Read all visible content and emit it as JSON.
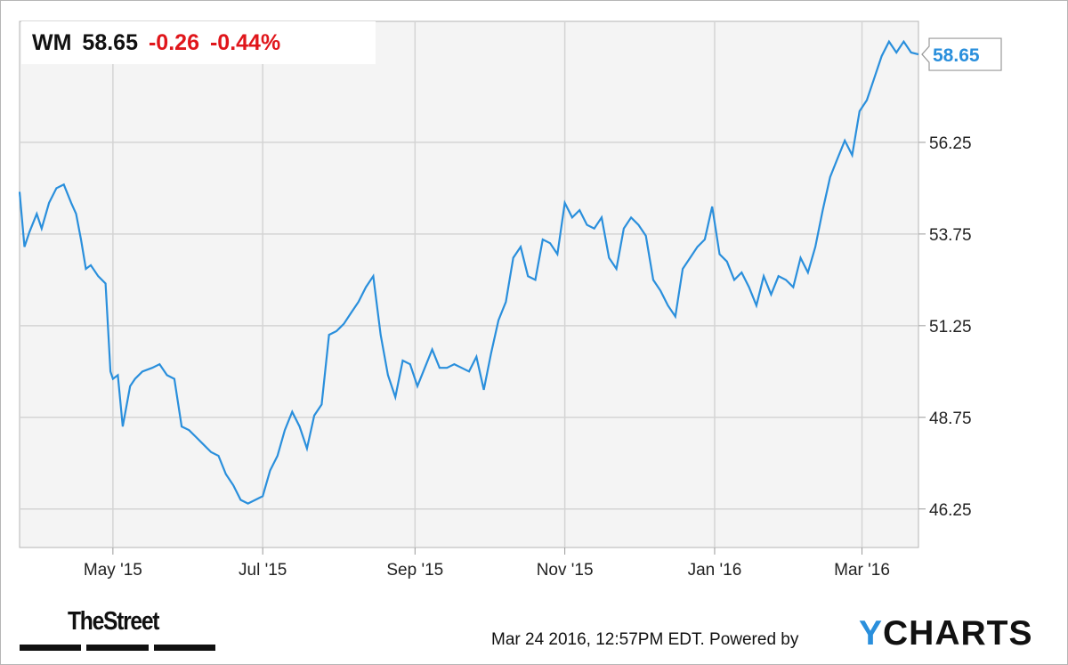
{
  "header": {
    "symbol": "WM",
    "price": "58.65",
    "change": "-0.26",
    "change_pct": "-0.44%"
  },
  "footer": {
    "timestamp": "Mar 24 2016, 12:57PM EDT.",
    "powered_by": "Powered by",
    "brand_y": "Y",
    "brand_rest": "CHARTS",
    "publisher_logo": "TheStreet"
  },
  "colors": {
    "line": "#2a8fdc",
    "negative": "#e0161b",
    "grid": "#d4d4d4",
    "plot_bg": "#f4f4f4"
  },
  "chart_data": {
    "type": "line",
    "title": "",
    "xlabel": "",
    "ylabel": "",
    "ylim": [
      45.2,
      59.55
    ],
    "y_ticks": [
      46.25,
      48.75,
      51.25,
      53.75,
      56.25
    ],
    "y_tick_labels": [
      "46.25",
      "48.75",
      "51.25",
      "53.75",
      "56.25"
    ],
    "x_ticks": [
      {
        "label": "May '15",
        "date": "2015-05-01"
      },
      {
        "label": "Jul '15",
        "date": "2015-07-01"
      },
      {
        "label": "Sep '15",
        "date": "2015-09-01"
      },
      {
        "label": "Nov '15",
        "date": "2015-11-01"
      },
      {
        "label": "Jan '16",
        "date": "2016-01-01"
      },
      {
        "label": "Mar '16",
        "date": "2016-03-01"
      }
    ],
    "x_range": [
      "2015-03-24",
      "2016-03-24"
    ],
    "last_value_label": "58.65",
    "series": [
      {
        "x": [
          "2015-03-24",
          "2015-03-26",
          "2015-03-28",
          "2015-03-31",
          "2015-04-02",
          "2015-04-05",
          "2015-04-08",
          "2015-04-11",
          "2015-04-14",
          "2015-04-16",
          "2015-04-18",
          "2015-04-20",
          "2015-04-22",
          "2015-04-25",
          "2015-04-28",
          "2015-04-30",
          "2015-05-01",
          "2015-05-03",
          "2015-05-05",
          "2015-05-08",
          "2015-05-10",
          "2015-05-13",
          "2015-05-17",
          "2015-05-20",
          "2015-05-23",
          "2015-05-26",
          "2015-05-29",
          "2015-06-01",
          "2015-06-04",
          "2015-06-07",
          "2015-06-10",
          "2015-06-13",
          "2015-06-16",
          "2015-06-19",
          "2015-06-22",
          "2015-06-25",
          "2015-06-28",
          "2015-07-01",
          "2015-07-04",
          "2015-07-07",
          "2015-07-10",
          "2015-07-13",
          "2015-07-16",
          "2015-07-19",
          "2015-07-22",
          "2015-07-25",
          "2015-07-28",
          "2015-07-31",
          "2015-08-03",
          "2015-08-06",
          "2015-08-09",
          "2015-08-12",
          "2015-08-15",
          "2015-08-18",
          "2015-08-21",
          "2015-08-24",
          "2015-08-27",
          "2015-08-30",
          "2015-09-02",
          "2015-09-05",
          "2015-09-08",
          "2015-09-11",
          "2015-09-14",
          "2015-09-17",
          "2015-09-20",
          "2015-09-23",
          "2015-09-26",
          "2015-09-29",
          "2015-10-02",
          "2015-10-05",
          "2015-10-08",
          "2015-10-11",
          "2015-10-14",
          "2015-10-17",
          "2015-10-20",
          "2015-10-23",
          "2015-10-26",
          "2015-10-29",
          "2015-11-01",
          "2015-11-04",
          "2015-11-07",
          "2015-11-10",
          "2015-11-13",
          "2015-11-16",
          "2015-11-19",
          "2015-11-22",
          "2015-11-25",
          "2015-11-28",
          "2015-12-01",
          "2015-12-04",
          "2015-12-07",
          "2015-12-10",
          "2015-12-13",
          "2015-12-16",
          "2015-12-19",
          "2015-12-22",
          "2015-12-25",
          "2015-12-28",
          "2015-12-31",
          "2016-01-03",
          "2016-01-06",
          "2016-01-09",
          "2016-01-12",
          "2016-01-15",
          "2016-01-18",
          "2016-01-21",
          "2016-01-24",
          "2016-01-27",
          "2016-01-30",
          "2016-02-02",
          "2016-02-05",
          "2016-02-08",
          "2016-02-11",
          "2016-02-14",
          "2016-02-17",
          "2016-02-20",
          "2016-02-23",
          "2016-02-26",
          "2016-02-29",
          "2016-03-03",
          "2016-03-06",
          "2016-03-09",
          "2016-03-12",
          "2016-03-15",
          "2016-03-18",
          "2016-03-21",
          "2016-03-24"
        ],
        "y": [
          54.9,
          53.4,
          53.8,
          54.3,
          53.9,
          54.6,
          55.0,
          55.1,
          54.6,
          54.3,
          53.6,
          52.8,
          52.9,
          52.6,
          52.4,
          50.0,
          49.8,
          49.9,
          48.5,
          49.6,
          49.8,
          50.0,
          50.1,
          50.2,
          49.9,
          49.8,
          48.5,
          48.4,
          48.2,
          48.0,
          47.8,
          47.7,
          47.2,
          46.9,
          46.5,
          46.4,
          46.5,
          46.6,
          47.3,
          47.7,
          48.4,
          48.9,
          48.5,
          47.9,
          48.8,
          49.1,
          51.0,
          51.1,
          51.3,
          51.6,
          51.9,
          52.3,
          52.6,
          51.0,
          49.9,
          49.3,
          50.3,
          50.2,
          49.6,
          50.1,
          50.6,
          50.1,
          50.1,
          50.2,
          50.1,
          50.0,
          50.4,
          49.5,
          50.5,
          51.4,
          51.9,
          53.1,
          53.4,
          52.6,
          52.5,
          53.6,
          53.5,
          53.2,
          54.6,
          54.2,
          54.4,
          54.0,
          53.9,
          54.2,
          53.1,
          52.8,
          53.9,
          54.2,
          54.0,
          53.7,
          52.5,
          52.2,
          51.8,
          51.5,
          52.8,
          53.1,
          53.4,
          53.6,
          54.5,
          53.2,
          53.0,
          52.5,
          52.7,
          52.3,
          51.8,
          52.6,
          52.1,
          52.6,
          52.5,
          52.3,
          53.1,
          52.7,
          53.4,
          54.4,
          55.3,
          55.8,
          56.3,
          55.9,
          57.1,
          57.4,
          58.0,
          58.6,
          59.0,
          58.7,
          59.0,
          58.7,
          58.65
        ]
      }
    ]
  }
}
